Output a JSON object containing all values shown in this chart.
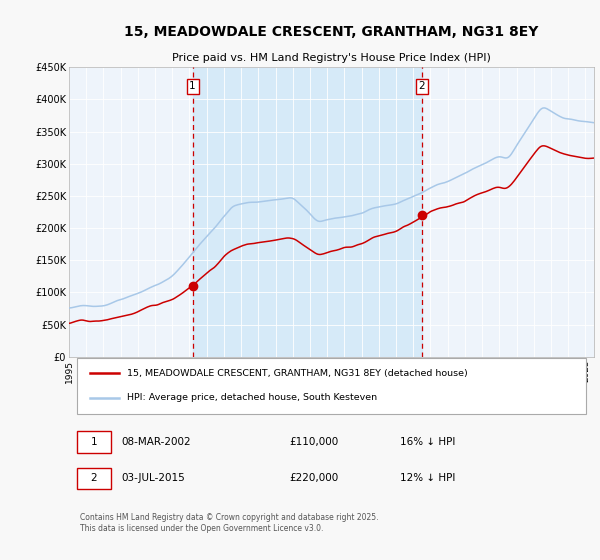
{
  "title": "15, MEADOWDALE CRESCENT, GRANTHAM, NG31 8EY",
  "subtitle": "Price paid vs. HM Land Registry's House Price Index (HPI)",
  "ylim": [
    0,
    450000
  ],
  "yticks": [
    0,
    50000,
    100000,
    150000,
    200000,
    250000,
    300000,
    350000,
    400000,
    450000
  ],
  "ytick_labels": [
    "£0",
    "£50K",
    "£100K",
    "£150K",
    "£200K",
    "£250K",
    "£300K",
    "£350K",
    "£400K",
    "£450K"
  ],
  "hpi_color": "#a8c8e8",
  "property_color": "#cc0000",
  "dashed_line_color": "#cc0000",
  "plot_bg_color": "#eef4fb",
  "span_color": "#d0e8f8",
  "purchase1_date": 2002.18,
  "purchase1_price": 110000,
  "purchase2_date": 2015.5,
  "purchase2_price": 220000,
  "legend_property": "15, MEADOWDALE CRESCENT, GRANTHAM, NG31 8EY (detached house)",
  "legend_hpi": "HPI: Average price, detached house, South Kesteven",
  "table_row1": [
    "1",
    "08-MAR-2002",
    "£110,000",
    "16% ↓ HPI"
  ],
  "table_row2": [
    "2",
    "03-JUL-2015",
    "£220,000",
    "12% ↓ HPI"
  ],
  "footer": "Contains HM Land Registry data © Crown copyright and database right 2025.\nThis data is licensed under the Open Government Licence v3.0.",
  "fig_bg": "#f8f8f8"
}
